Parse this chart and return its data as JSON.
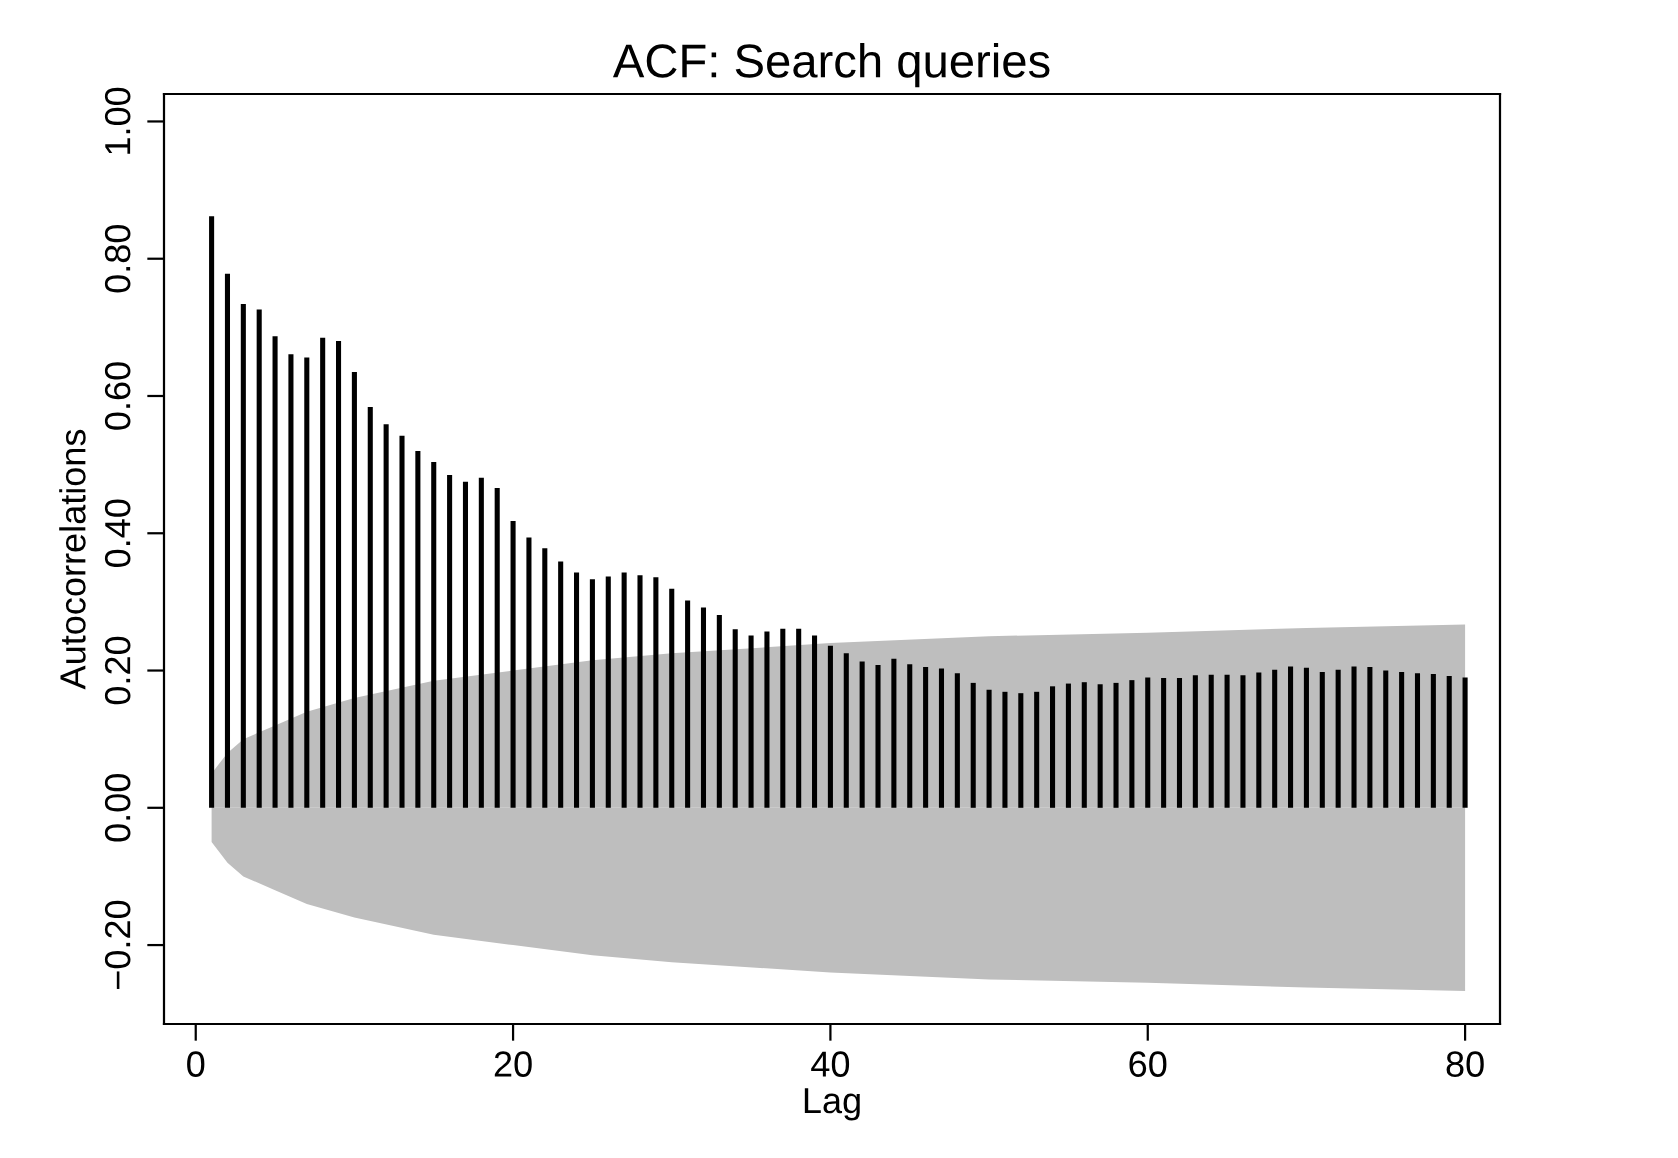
{
  "chart_data": {
    "type": "bar",
    "title": "ACF: Search queries",
    "xlabel": "Lag",
    "ylabel": "Autocorrelations",
    "xlim": [
      -2,
      82.2
    ],
    "ylim": [
      -0.315,
      1.04
    ],
    "xticks": [
      0,
      20,
      40,
      60,
      80
    ],
    "yticks": [
      {
        "value": -0.2,
        "label": "−0.20"
      },
      {
        "value": 0,
        "label": "0.00"
      },
      {
        "value": 0.2,
        "label": "0.20"
      },
      {
        "value": 0.4,
        "label": "0.40"
      },
      {
        "value": 0.6,
        "label": "0.60"
      },
      {
        "value": 0.8,
        "label": "0.80"
      },
      {
        "value": 1.0,
        "label": "1.00"
      }
    ],
    "grid": false,
    "legend": false,
    "series": [
      {
        "type": "area",
        "color": "#bebebe",
        "x": [
          1,
          2,
          3,
          5,
          7,
          10,
          15,
          20,
          25,
          30,
          40,
          50,
          60,
          70,
          80
        ],
        "values": [
          -0.05,
          -0.08,
          -0.1,
          -0.12,
          -0.14,
          -0.16,
          -0.185,
          -0.2,
          -0.215,
          -0.225,
          -0.24,
          -0.25,
          -0.255,
          -0.262,
          -0.267
        ]
      },
      {
        "type": "area",
        "color": "#bebebe",
        "x": [
          1,
          2,
          3,
          5,
          7,
          10,
          15,
          20,
          25,
          30,
          40,
          50,
          60,
          70,
          80
        ],
        "values": [
          0.05,
          0.08,
          0.1,
          0.12,
          0.14,
          0.16,
          0.185,
          0.2,
          0.215,
          0.225,
          0.24,
          0.25,
          0.255,
          0.262,
          0.267
        ]
      },
      {
        "color": "#000000",
        "x": [
          1,
          2,
          3,
          4,
          5,
          6,
          7,
          8,
          9,
          10,
          11,
          12,
          13,
          14,
          15,
          16,
          17,
          18,
          19,
          20,
          21,
          22,
          23,
          24,
          25,
          26,
          27,
          28,
          29,
          30,
          31,
          32,
          33,
          34,
          35,
          36,
          37,
          38,
          39,
          40,
          41,
          42,
          43,
          44,
          45,
          46,
          47,
          48,
          49,
          50,
          51,
          52,
          53,
          54,
          55,
          56,
          57,
          58,
          59,
          60,
          61,
          62,
          63,
          64,
          65,
          66,
          67,
          68,
          69,
          70,
          71,
          72,
          73,
          74,
          75,
          76,
          77,
          78,
          79,
          80
        ],
        "values": [
          0.862,
          0.778,
          0.734,
          0.726,
          0.687,
          0.661,
          0.656,
          0.685,
          0.68,
          0.635,
          0.584,
          0.559,
          0.542,
          0.52,
          0.504,
          0.485,
          0.475,
          0.481,
          0.466,
          0.418,
          0.394,
          0.378,
          0.359,
          0.343,
          0.333,
          0.337,
          0.343,
          0.339,
          0.336,
          0.319,
          0.302,
          0.292,
          0.281,
          0.26,
          0.251,
          0.257,
          0.261,
          0.261,
          0.251,
          0.236,
          0.225,
          0.213,
          0.208,
          0.217,
          0.209,
          0.205,
          0.203,
          0.196,
          0.182,
          0.172,
          0.169,
          0.167,
          0.169,
          0.177,
          0.181,
          0.183,
          0.18,
          0.182,
          0.186,
          0.19,
          0.189,
          0.189,
          0.193,
          0.194,
          0.194,
          0.193,
          0.197,
          0.201,
          0.206,
          0.204,
          0.198,
          0.201,
          0.206,
          0.205,
          0.2,
          0.198,
          0.196,
          0.195,
          0.192,
          0.19
        ]
      }
    ]
  }
}
